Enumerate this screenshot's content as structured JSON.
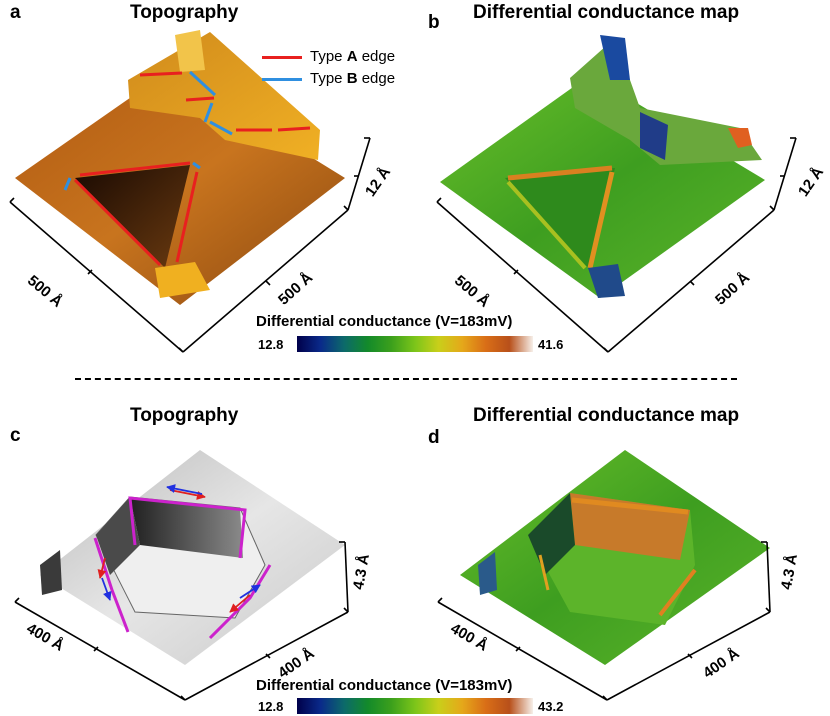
{
  "panels": {
    "a": {
      "letter": "a",
      "title": "Topography",
      "x_label": "500 Å",
      "y_label": "500 Å",
      "z_label": "12 Å"
    },
    "b": {
      "letter": "b",
      "title": "Differential conductance map",
      "x_label": "500 Å",
      "y_label": "500 Å",
      "z_label": "12 Å"
    },
    "c": {
      "letter": "c",
      "title": "Topography",
      "x_label": "400 Å",
      "y_label": "400 Å",
      "z_label": "4.3 Å"
    },
    "d": {
      "letter": "d",
      "title": "Differential conductance map",
      "x_label": "400 Å",
      "y_label": "400 Å",
      "z_label": "4.3 Å"
    }
  },
  "legend": {
    "type_a": {
      "prefix": "Type ",
      "bold": "A",
      "suffix": " edge",
      "color": "#e8201f"
    },
    "type_b": {
      "prefix": "Type ",
      "bold": "B",
      "suffix": " edge",
      "color": "#2f8fe0"
    }
  },
  "colorbars": {
    "top": {
      "title": "Differential conductance (V=183mV)",
      "min": "12.8",
      "max": "41.6"
    },
    "bottom": {
      "title": "Differential conductance (V=183mV)",
      "min": "12.8",
      "max": "43.2"
    }
  },
  "colors": {
    "topo_orange": "#c06a1a",
    "topo_gold": "#e8a520",
    "map_green": "#4aa824",
    "arrow_red": "#e02020",
    "arrow_blue": "#2030e0",
    "edge_magenta": "#cc22cc"
  }
}
